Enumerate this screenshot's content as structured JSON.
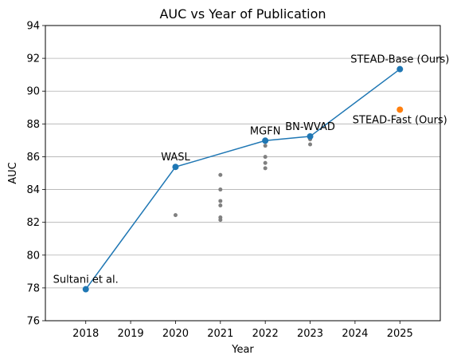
{
  "chart_data": {
    "type": "line",
    "title": "AUC vs Year of Publication",
    "xlabel": "Year",
    "ylabel": "AUC",
    "xlim": [
      2017.1,
      2025.9
    ],
    "ylim": [
      76,
      94
    ],
    "x_ticks": [
      2018,
      2019,
      2020,
      2021,
      2022,
      2023,
      2024,
      2025
    ],
    "y_ticks": [
      76,
      78,
      80,
      82,
      84,
      86,
      88,
      90,
      92,
      94
    ],
    "grid": "horizontal",
    "colors": {
      "main_line": "#1f77b4",
      "fast": "#ff7f0e",
      "others": "#808080"
    },
    "main_series": {
      "points": [
        {
          "x": 2018,
          "y": 77.92,
          "label": "Sultani et al."
        },
        {
          "x": 2020,
          "y": 85.38,
          "label": "WASL"
        },
        {
          "x": 2022,
          "y": 86.98,
          "label": "MGFN"
        },
        {
          "x": 2023,
          "y": 87.24,
          "label": "BN-WVAD"
        },
        {
          "x": 2025,
          "y": 91.34,
          "label": "STEAD-Base (Ours)"
        }
      ]
    },
    "highlight_point": {
      "x": 2025,
      "y": 88.87,
      "label": "STEAD-Fast (Ours)"
    },
    "other_points": [
      {
        "x": 2020,
        "y": 82.44
      },
      {
        "x": 2021,
        "y": 84.89
      },
      {
        "x": 2021,
        "y": 84.0
      },
      {
        "x": 2021,
        "y": 83.3
      },
      {
        "x": 2021,
        "y": 83.03
      },
      {
        "x": 2021,
        "y": 82.3
      },
      {
        "x": 2021,
        "y": 82.15
      },
      {
        "x": 2022,
        "y": 86.67
      },
      {
        "x": 2022,
        "y": 85.99
      },
      {
        "x": 2022,
        "y": 85.62
      },
      {
        "x": 2022,
        "y": 85.3
      },
      {
        "x": 2023,
        "y": 87.06
      },
      {
        "x": 2023,
        "y": 86.75
      }
    ]
  }
}
